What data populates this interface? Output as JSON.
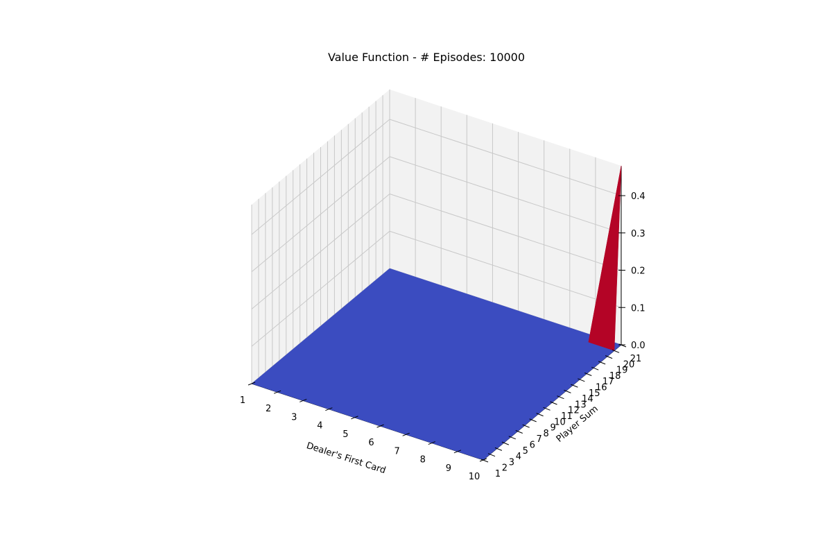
{
  "chart_data": {
    "type": "surface3d",
    "title": "Value Function - # Episodes: 10000",
    "xlabel": "Dealer's First Card",
    "ylabel": "Player Sum",
    "zlabel": "",
    "x_ticks": [
      1,
      2,
      3,
      4,
      5,
      6,
      7,
      8,
      9,
      10
    ],
    "y_ticks": [
      1,
      2,
      3,
      4,
      5,
      6,
      7,
      8,
      9,
      10,
      11,
      12,
      13,
      14,
      15,
      16,
      17,
      18,
      19,
      20,
      21
    ],
    "z_ticks": [
      0.0,
      0.1,
      0.2,
      0.3,
      0.4
    ],
    "z_tick_labels": [
      "0.0",
      "0.1",
      "0.2",
      "0.3",
      "0.4"
    ],
    "xlim": [
      1,
      10
    ],
    "ylim": [
      1,
      21
    ],
    "zlim": [
      0,
      0.48
    ],
    "grid": true,
    "colormap": "coolwarm",
    "colors": {
      "low": "#3b4cc0",
      "high": "#b40426",
      "pane": "#f2f2f2",
      "grid": "#c8c8c8"
    },
    "surface": {
      "baseline_value": 0.0,
      "peaks": [
        {
          "dealer": 10,
          "player": 21,
          "value": 0.48
        }
      ]
    }
  }
}
